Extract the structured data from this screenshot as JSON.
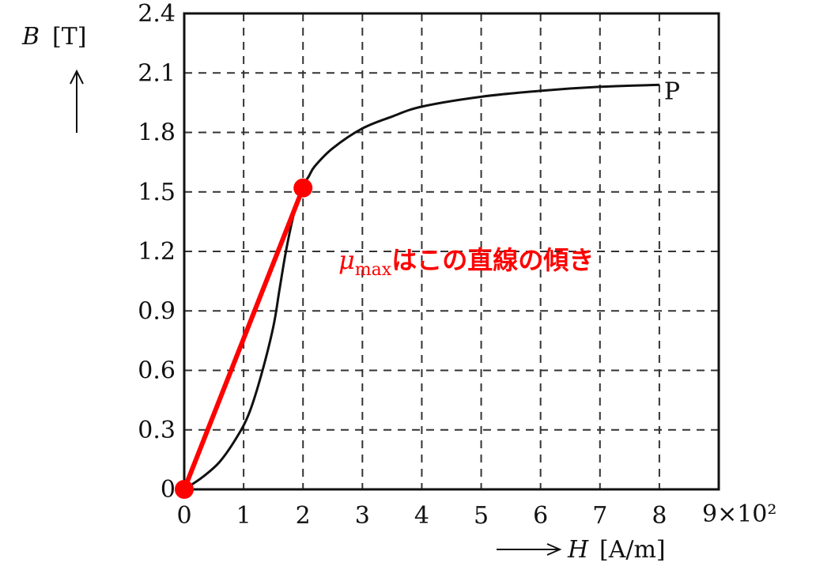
{
  "chart_data": {
    "type": "line",
    "title": "",
    "xlabel": "H",
    "xunit": "[A/m]",
    "ylabel": "B",
    "yunit": "[T]",
    "xlim": [
      0,
      9
    ],
    "ylim": [
      0,
      2.4
    ],
    "x_scale_note": "9×10²",
    "x_ticks": [
      "0",
      "1",
      "2",
      "3",
      "4",
      "5",
      "6",
      "7",
      "8"
    ],
    "y_ticks": [
      "0",
      "0.3",
      "0.6",
      "0.9",
      "1.2",
      "1.5",
      "1.8",
      "2.1",
      "2.4"
    ],
    "x_tick_values": [
      0,
      1,
      2,
      3,
      4,
      5,
      6,
      7,
      8,
      9
    ],
    "y_tick_values": [
      0,
      0.3,
      0.6,
      0.9,
      1.2,
      1.5,
      1.8,
      2.1,
      2.4
    ],
    "grid": true,
    "series": [
      {
        "values_x": [
          0,
          0.3,
          0.6,
          0.9,
          1.1,
          1.3,
          1.5,
          1.6,
          1.7,
          1.8,
          1.9,
          2.0,
          2.1,
          2.2,
          2.5,
          3.0,
          3.5,
          4.0,
          5.0,
          6.0,
          7.0,
          8.0
        ],
        "values_y": [
          0,
          0.06,
          0.14,
          0.27,
          0.39,
          0.58,
          0.82,
          1.0,
          1.18,
          1.33,
          1.45,
          1.53,
          1.58,
          1.63,
          1.72,
          1.82,
          1.88,
          1.93,
          1.98,
          2.01,
          2.03,
          2.04
        ],
        "color": "#111111"
      },
      {
        "values_x": [
          0,
          2
        ],
        "values_y": [
          0,
          1.52
        ],
        "color": "#ff0000"
      }
    ],
    "end_label": {
      "text": "P",
      "x": 8,
      "y": 2.04
    },
    "annotation": {
      "mu": "μ",
      "sub": "max",
      "text": "はこの直線の傾き",
      "color": "#ff0000"
    }
  },
  "colors": {
    "curve": "#111111",
    "highlight": "#ff0000",
    "grid": "#333333"
  }
}
